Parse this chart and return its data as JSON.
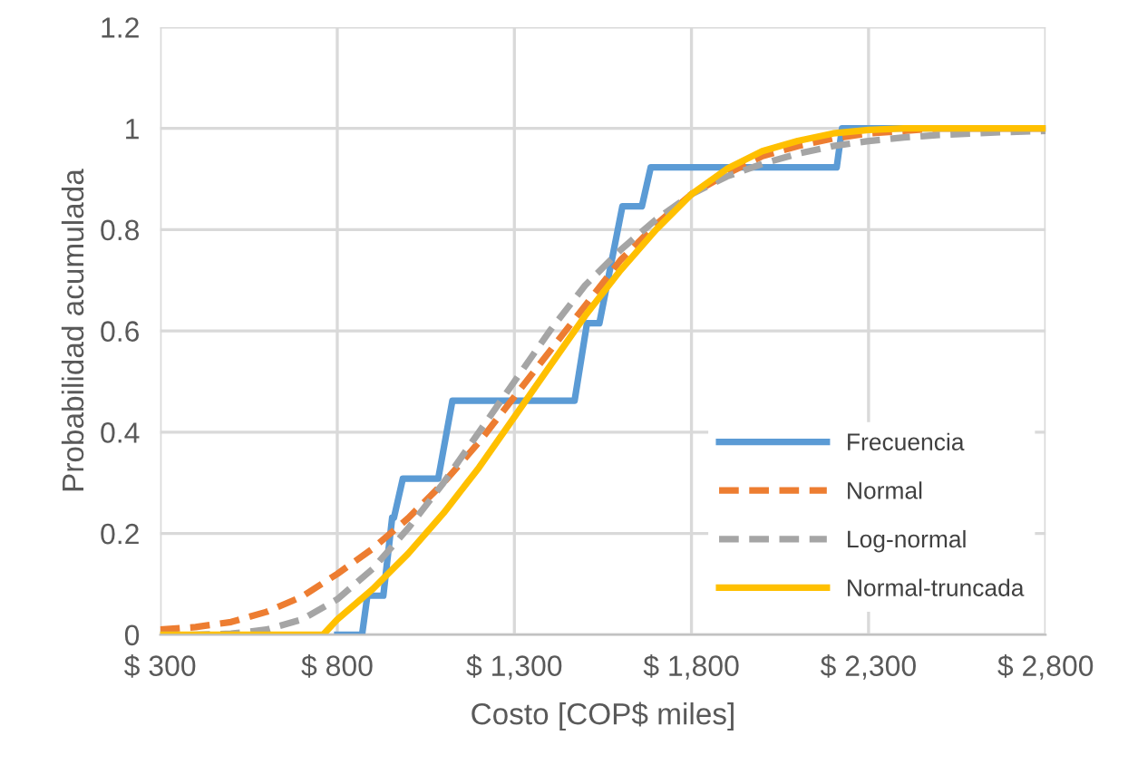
{
  "chart_data": {
    "type": "line",
    "xlabel": "Costo [COP$ miles]",
    "ylabel": "Probabilidad acumulada",
    "xlim": [
      300,
      2800
    ],
    "xticks": [
      {
        "value": 300,
        "label": "$ 300"
      },
      {
        "value": 800,
        "label": "$ 800"
      },
      {
        "value": 1300,
        "label": "$ 1,300"
      },
      {
        "value": 1800,
        "label": "$ 1,800"
      },
      {
        "value": 2300,
        "label": "$ 2,300"
      },
      {
        "value": 2800,
        "label": "$ 2,800"
      }
    ],
    "ylim": [
      0,
      1.2
    ],
    "yticks": [
      0,
      0.2,
      0.4,
      0.6,
      0.8,
      1,
      1.2
    ],
    "grid": true,
    "legend": "bottom right",
    "marker": "none",
    "series": [
      {
        "name": "Frecuencia",
        "color": "#5b9bd5",
        "line_style": "solid",
        "x": [
          800,
          870,
          885,
          930,
          955,
          960,
          985,
          1085,
          1125,
          1470,
          1505,
          1540,
          1605,
          1660,
          1685,
          2210,
          2225,
          2800
        ],
        "values": [
          0,
          0,
          0.077,
          0.077,
          0.231,
          0.231,
          0.308,
          0.308,
          0.462,
          0.462,
          0.615,
          0.615,
          0.846,
          0.846,
          0.923,
          0.923,
          1,
          1
        ]
      },
      {
        "name": "Normal",
        "color": "#ed7d31",
        "line_style": "dashed",
        "x": [
          300,
          400,
          500,
          600,
          700,
          800,
          900,
          1000,
          1100,
          1200,
          1300,
          1400,
          1500,
          1600,
          1700,
          1800,
          1900,
          2000,
          2100,
          2200,
          2300,
          2400,
          2500,
          2600,
          2700,
          2800
        ],
        "values": [
          0.01,
          0.015,
          0.025,
          0.045,
          0.075,
          0.12,
          0.17,
          0.23,
          0.3,
          0.38,
          0.47,
          0.56,
          0.65,
          0.74,
          0.81,
          0.87,
          0.91,
          0.945,
          0.965,
          0.98,
          0.99,
          0.995,
          1,
          1,
          1,
          1
        ]
      },
      {
        "name": "Log-normal",
        "color": "#a5a5a5",
        "line_style": "dashed",
        "x": [
          300,
          400,
          500,
          600,
          700,
          800,
          900,
          1000,
          1100,
          1200,
          1300,
          1400,
          1500,
          1600,
          1700,
          1800,
          1900,
          2000,
          2100,
          2200,
          2300,
          2400,
          2500,
          2600,
          2700,
          2800
        ],
        "values": [
          0,
          0,
          0.002,
          0.01,
          0.03,
          0.07,
          0.13,
          0.21,
          0.3,
          0.4,
          0.5,
          0.6,
          0.69,
          0.76,
          0.82,
          0.87,
          0.905,
          0.93,
          0.95,
          0.965,
          0.975,
          0.982,
          0.987,
          0.99,
          0.993,
          0.995
        ]
      },
      {
        "name": "Normal-truncada",
        "color": "#ffc000",
        "line_style": "solid",
        "x": [
          300,
          760,
          800,
          900,
          1000,
          1100,
          1200,
          1300,
          1400,
          1500,
          1600,
          1700,
          1800,
          1900,
          2000,
          2100,
          2200,
          2300,
          2400,
          2800
        ],
        "values": [
          0,
          0,
          0.03,
          0.09,
          0.16,
          0.24,
          0.33,
          0.43,
          0.53,
          0.63,
          0.72,
          0.8,
          0.87,
          0.92,
          0.955,
          0.975,
          0.99,
          0.997,
          1,
          1
        ]
      }
    ]
  }
}
